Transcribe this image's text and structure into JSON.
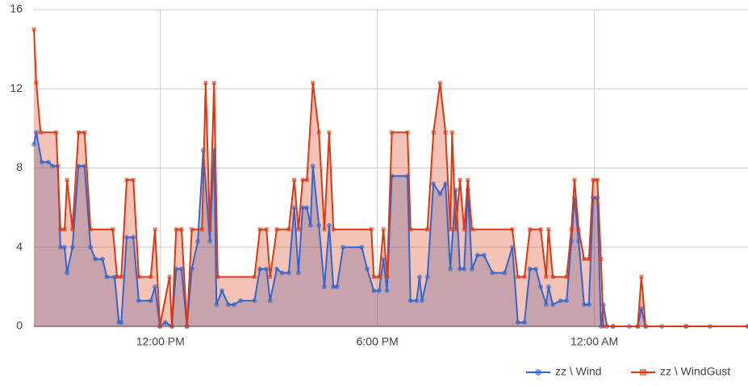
{
  "chart_data": {
    "type": "area",
    "xlim": [
      510,
      1695
    ],
    "xticks": [
      {
        "value": 720,
        "label": "12:00 PM"
      },
      {
        "value": 1080,
        "label": "6:00 PM"
      },
      {
        "value": 1440,
        "label": "12:00 AM"
      }
    ],
    "ylim": [
      0,
      16
    ],
    "yticks": [
      0,
      4,
      8,
      12,
      16
    ],
    "grid": true,
    "legend": "bottom-right",
    "series": [
      {
        "name": "zz \\ Wind",
        "color": "#3366cc",
        "marker": "circle",
        "x": [
          510,
          514,
          523,
          534,
          541,
          550,
          554,
          561,
          565,
          574,
          584,
          594,
          604,
          612,
          624,
          631,
          644,
          651,
          655,
          664,
          675,
          684,
          704,
          711,
          719,
          728,
          739,
          746,
          755,
          764,
          772,
          782,
          791,
          802,
          809,
          813,
          822,
          833,
          842,
          853,
          876,
          885,
          896,
          902,
          913,
          922,
          933,
          942,
          949,
          956,
          963,
          969,
          973,
          983,
          992,
          1000,
          1007,
          1013,
          1023,
          1054,
          1063,
          1074,
          1083,
          1090,
          1096,
          1104,
          1130,
          1135,
          1145,
          1150,
          1154,
          1163,
          1173,
          1184,
          1193,
          1201,
          1210,
          1217,
          1224,
          1230,
          1237,
          1246,
          1257,
          1271,
          1291,
          1304,
          1313,
          1324,
          1333,
          1343,
          1351,
          1360,
          1364,
          1371,
          1384,
          1394,
          1402,
          1407,
          1414,
          1423,
          1431,
          1438,
          1445,
          1451,
          1455,
          1461,
          1471,
          1498,
          1512,
          1518,
          1525,
          1552,
          1592,
          1632,
          1695
        ],
        "values": [
          9.2,
          9.8,
          8.3,
          8.3,
          8.1,
          8.1,
          4.0,
          4.0,
          2.7,
          4.0,
          8.1,
          8.1,
          4.0,
          3.4,
          3.4,
          2.5,
          2.5,
          0.2,
          0.2,
          4.5,
          4.5,
          1.3,
          1.3,
          2.0,
          0,
          0.2,
          0,
          2.9,
          2.9,
          0,
          2.9,
          4.3,
          8.9,
          4.3,
          8.9,
          1.1,
          1.8,
          1.1,
          1.1,
          1.3,
          1.3,
          2.9,
          2.9,
          1.3,
          2.9,
          2.7,
          2.7,
          6.0,
          2.7,
          6.0,
          6.0,
          5.1,
          8.1,
          5.1,
          2.0,
          5.1,
          2.0,
          2.0,
          4.0,
          4.0,
          2.9,
          1.8,
          1.8,
          3.4,
          1.8,
          7.6,
          7.6,
          1.3,
          1.3,
          2.5,
          1.3,
          2.5,
          7.2,
          6.7,
          7.2,
          2.9,
          6.9,
          2.9,
          2.9,
          6.9,
          2.9,
          3.6,
          3.6,
          2.7,
          2.7,
          4.0,
          0.2,
          0.2,
          2.9,
          2.9,
          2.0,
          1.1,
          2.0,
          1.1,
          1.3,
          1.3,
          4.3,
          6.5,
          4.3,
          1.1,
          1.1,
          6.5,
          6.5,
          0,
          1.1,
          0,
          0,
          0,
          0,
          0.9,
          0,
          0,
          0,
          0,
          0
        ]
      },
      {
        "name": "zz \\ WindGust",
        "color": "#dc3912",
        "marker": "square",
        "x": [
          510,
          514,
          521,
          547,
          554,
          561,
          565,
          574,
          584,
          594,
          604,
          641,
          648,
          655,
          664,
          675,
          684,
          704,
          711,
          719,
          735,
          739,
          746,
          755,
          764,
          772,
          789,
          795,
          802,
          809,
          815,
          876,
          885,
          896,
          902,
          913,
          933,
          942,
          949,
          956,
          963,
          973,
          983,
          992,
          1000,
          1007,
          1070,
          1074,
          1083,
          1090,
          1096,
          1104,
          1130,
          1135,
          1163,
          1173,
          1184,
          1193,
          1201,
          1204,
          1210,
          1217,
          1224,
          1230,
          1237,
          1304,
          1313,
          1324,
          1333,
          1351,
          1360,
          1364,
          1371,
          1394,
          1402,
          1407,
          1414,
          1423,
          1431,
          1438,
          1445,
          1451,
          1455,
          1471,
          1512,
          1518,
          1525,
          1592,
          1695
        ],
        "values": [
          15,
          12.3,
          9.8,
          9.8,
          4.9,
          4.9,
          7.4,
          4.9,
          9.8,
          9.8,
          4.9,
          4.9,
          2.5,
          2.5,
          7.4,
          7.4,
          2.5,
          2.5,
          4.9,
          0,
          2.5,
          0,
          4.9,
          4.9,
          0,
          4.9,
          4.9,
          12.3,
          4.9,
          12.3,
          2.5,
          2.5,
          4.9,
          4.9,
          2.5,
          4.9,
          4.9,
          7.4,
          4.9,
          7.4,
          7.4,
          12.3,
          9.8,
          4.9,
          9.8,
          4.9,
          4.9,
          2.5,
          2.5,
          4.9,
          2.5,
          9.8,
          9.8,
          4.9,
          4.9,
          9.8,
          12.3,
          9.8,
          4.9,
          9.8,
          4.9,
          7.4,
          4.9,
          7.4,
          4.9,
          4.9,
          2.5,
          2.5,
          4.9,
          4.9,
          2.5,
          4.9,
          2.5,
          2.5,
          4.9,
          7.4,
          4.9,
          3.4,
          3.4,
          7.4,
          7.4,
          3.4,
          0,
          0,
          0,
          2.5,
          0,
          0,
          0
        ]
      }
    ]
  }
}
